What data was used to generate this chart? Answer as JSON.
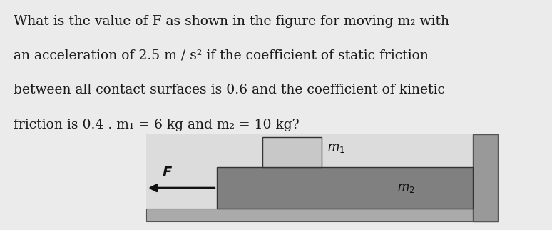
{
  "bg_color": "#ebebeb",
  "text_color": "#1a1a1a",
  "text_lines": [
    "What is the value of F as shown in the figure for moving m₂ with",
    "an acceleration of 2.5 m / s² if the coefficient of static friction",
    "between all contact surfaces is 0.6 and the coefficient of kinetic",
    "friction is 0.4 . m₁ = 6 kg and m₂ = 10 kg?"
  ],
  "text_fontsize": 13.5,
  "diagram_bg_color": "#dcdcdc",
  "wall_color": "#999999",
  "floor_color": "#aaaaaa",
  "m2_color": "#808080",
  "m1_color": "#c8c8c8",
  "arrow_color": "#111111",
  "label_color": "#111111",
  "wall_edge_color": "#555555",
  "block_edge_color": "#333333"
}
